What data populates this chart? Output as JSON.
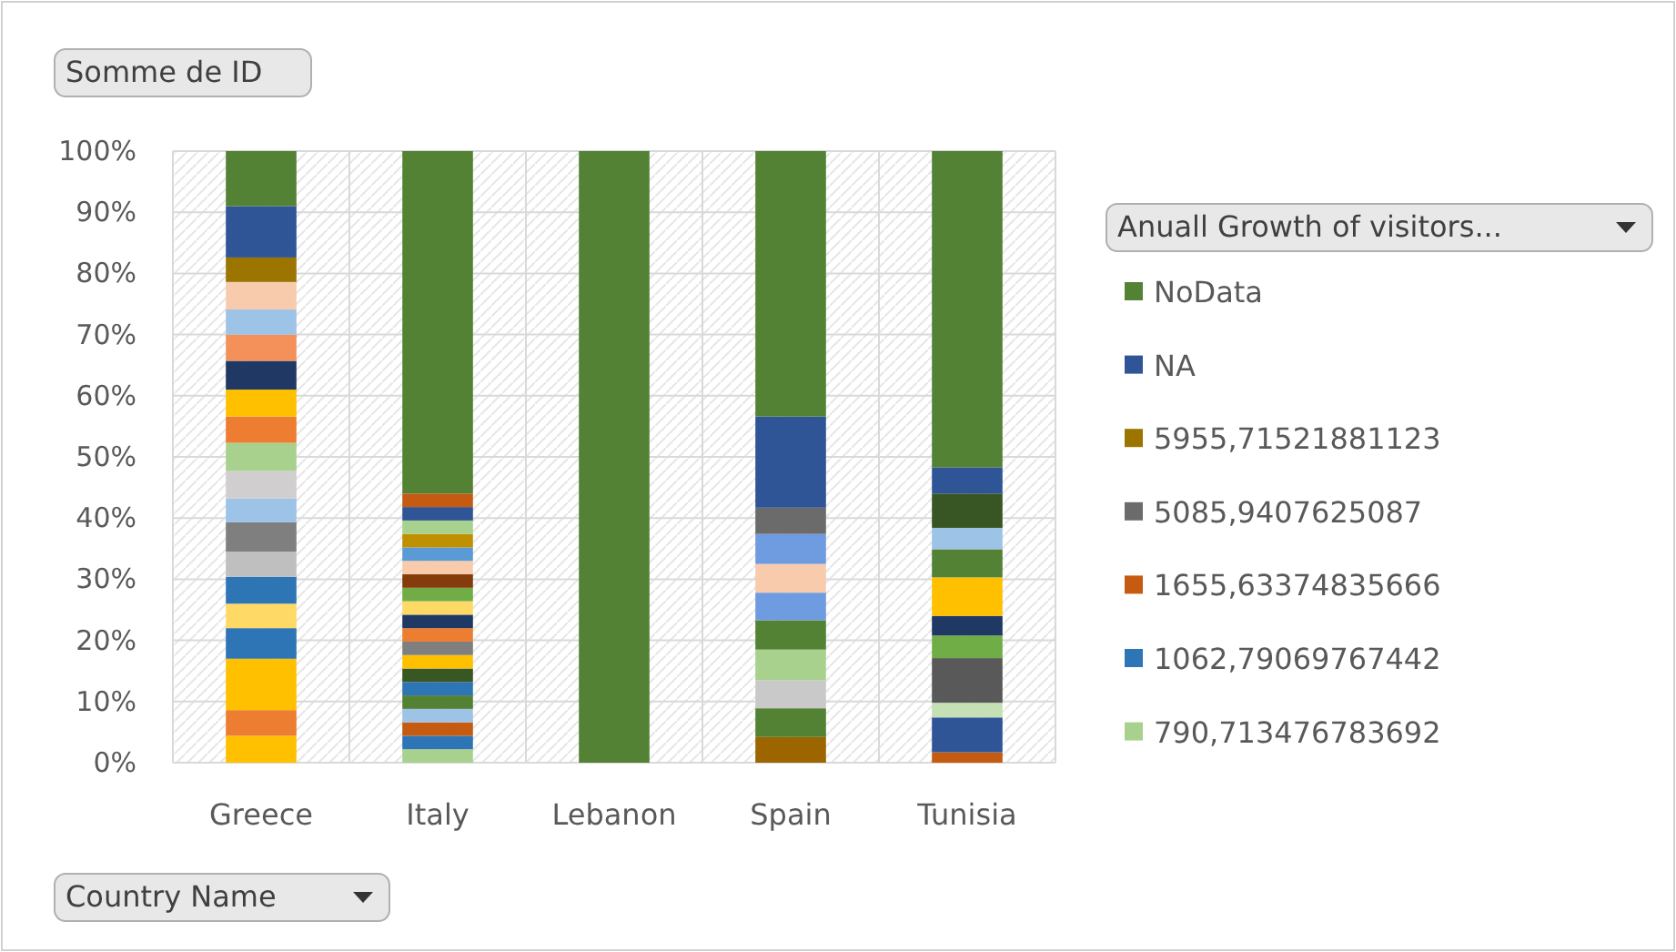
{
  "chart_data": {
    "type": "bar",
    "stacked": true,
    "title": "Somme de ID",
    "xlabel": "Country Name",
    "legend_title": "Anuall Growth of visitors...",
    "legend": "right",
    "grid": true,
    "categories": [
      "Greece",
      "Italy",
      "Lebanon",
      "Spain",
      "Tunisia"
    ],
    "ylim": [
      0,
      100
    ],
    "yticks": [
      {
        "value": 0,
        "label": "0%"
      },
      {
        "value": 10,
        "label": "10%"
      },
      {
        "value": 20,
        "label": "20%"
      },
      {
        "value": 30,
        "label": "30%"
      },
      {
        "value": 40,
        "label": "40%"
      },
      {
        "value": 50,
        "label": "50%"
      },
      {
        "value": 60,
        "label": "60%"
      },
      {
        "value": 70,
        "label": "70%"
      },
      {
        "value": 80,
        "label": "80%"
      },
      {
        "value": 90,
        "label": "90%"
      },
      {
        "value": 100,
        "label": "100%"
      }
    ],
    "series": [
      {
        "name": "790,713476783692",
        "color": "#a9d18e",
        "values": [
          null,
          2.2,
          null,
          null,
          null
        ]
      },
      {
        "name": "1062,79069767442",
        "color": "#2e75b6",
        "values": [
          null,
          2.2,
          null,
          null,
          null
        ]
      },
      {
        "name": "1655,63374835666",
        "color": "#c55a11",
        "values": [
          null,
          null,
          null,
          null,
          1.7
        ]
      },
      {
        "color": "#9c6500",
        "values": [
          null,
          null,
          null,
          4.2,
          null
        ]
      },
      {
        "color": "#548235",
        "values": [
          null,
          null,
          null,
          4.7,
          null
        ]
      },
      {
        "color": "#c9c9c9",
        "values": [
          null,
          null,
          null,
          4.6,
          null
        ]
      },
      {
        "color": "#a9d18e",
        "values": [
          null,
          null,
          null,
          5,
          null
        ]
      },
      {
        "color": "#548235",
        "values": [
          null,
          null,
          null,
          4.8,
          null
        ]
      },
      {
        "color": "#6f9be0",
        "values": [
          null,
          null,
          null,
          4.5,
          null
        ]
      },
      {
        "color": "#f8cbad",
        "values": [
          null,
          null,
          null,
          4.7,
          null
        ]
      },
      {
        "color": "#6f9be0",
        "values": [
          null,
          null,
          null,
          4.9,
          null
        ]
      },
      {
        "name": "5085,9407625087",
        "color": "#6b6b6b",
        "values": [
          null,
          null,
          null,
          4.3,
          null
        ]
      },
      {
        "color": "#ffc000",
        "values": [
          4.4,
          null,
          null,
          null,
          null
        ]
      },
      {
        "color": "#ed7d31",
        "values": [
          4.2,
          null,
          null,
          null,
          null
        ]
      },
      {
        "color": "#ffc000",
        "values": [
          8.4,
          null,
          null,
          null,
          null
        ]
      },
      {
        "color": "#2e75b6",
        "values": [
          5,
          null,
          null,
          null,
          null
        ]
      },
      {
        "color": "#ffd966",
        "values": [
          4,
          null,
          null,
          null,
          null
        ]
      },
      {
        "color": "#2e75b6",
        "values": [
          4.4,
          null,
          null,
          null,
          null
        ]
      },
      {
        "color": "#bfbfbf",
        "values": [
          4.1,
          null,
          null,
          null,
          null
        ]
      },
      {
        "color": "#7f7f7f",
        "values": [
          4.8,
          null,
          null,
          null,
          null
        ]
      },
      {
        "color": "#9dc3e6",
        "values": [
          3.9,
          null,
          null,
          null,
          null
        ]
      },
      {
        "color": "#d0cece",
        "values": [
          4.5,
          null,
          null,
          null,
          null
        ]
      },
      {
        "color": "#a9d18e",
        "values": [
          4.6,
          null,
          null,
          null,
          null
        ]
      },
      {
        "color": "#ed7d31",
        "values": [
          4.3,
          null,
          null,
          null,
          null
        ]
      },
      {
        "color": "#ffc000",
        "values": [
          4.4,
          null,
          null,
          null,
          null
        ]
      },
      {
        "color": "#203864",
        "values": [
          4.7,
          null,
          null,
          null,
          null
        ]
      },
      {
        "color": "#f4915a",
        "values": [
          4.3,
          null,
          null,
          null,
          null
        ]
      },
      {
        "color": "#9dc3e6",
        "values": [
          4.1,
          null,
          null,
          null,
          null
        ]
      },
      {
        "color": "#f8cbad",
        "values": [
          4.5,
          null,
          null,
          null,
          null
        ]
      },
      {
        "name": "5955,71521881123",
        "color": "#9c7400",
        "values": [
          4,
          null,
          null,
          null,
          null
        ]
      },
      {
        "color": "#c55a11",
        "values": [
          null,
          2.2,
          null,
          null,
          null
        ]
      },
      {
        "color": "#9dc3e6",
        "values": [
          null,
          2.2,
          null,
          null,
          null
        ]
      },
      {
        "color": "#548235",
        "values": [
          null,
          2.2,
          null,
          null,
          null
        ]
      },
      {
        "color": "#2e75b6",
        "values": [
          null,
          2.2,
          null,
          null,
          null
        ]
      },
      {
        "color": "#385723",
        "values": [
          null,
          2.2,
          null,
          null,
          null
        ]
      },
      {
        "color": "#ffc000",
        "values": [
          null,
          2.2,
          null,
          null,
          null
        ]
      },
      {
        "color": "#7f7f7f",
        "values": [
          null,
          2.2,
          null,
          null,
          null
        ]
      },
      {
        "color": "#ed7d31",
        "values": [
          null,
          2.2,
          null,
          null,
          null
        ]
      },
      {
        "color": "#203864",
        "values": [
          null,
          2.2,
          null,
          null,
          null
        ]
      },
      {
        "color": "#ffd966",
        "values": [
          null,
          2.2,
          null,
          null,
          null
        ]
      },
      {
        "color": "#70ad47",
        "values": [
          null,
          2.2,
          null,
          null,
          null
        ]
      },
      {
        "color": "#843c0c",
        "values": [
          null,
          2.2,
          null,
          null,
          null
        ]
      },
      {
        "color": "#f8cbad",
        "values": [
          null,
          2.2,
          null,
          null,
          null
        ]
      },
      {
        "color": "#5b9bd5",
        "values": [
          null,
          2.2,
          null,
          null,
          null
        ]
      },
      {
        "color": "#bf9000",
        "values": [
          null,
          2.2,
          null,
          null,
          null
        ]
      },
      {
        "color": "#a9d18e",
        "values": [
          null,
          2.2,
          null,
          null,
          null
        ]
      },
      {
        "color": "#2f5597",
        "values": [
          null,
          2.2,
          null,
          null,
          null
        ]
      },
      {
        "color": "#c55a11",
        "values": [
          null,
          2.2,
          null,
          null,
          null
        ]
      },
      {
        "color": "#2f5597",
        "values": [
          null,
          null,
          null,
          null,
          5.7
        ]
      },
      {
        "color": "#c5e0b4",
        "values": [
          null,
          null,
          null,
          null,
          2.4
        ]
      },
      {
        "color": "#595959",
        "values": [
          null,
          null,
          null,
          null,
          7.3
        ]
      },
      {
        "color": "#70ad47",
        "values": [
          null,
          null,
          null,
          null,
          3.7
        ]
      },
      {
        "color": "#1f3864",
        "values": [
          null,
          null,
          null,
          null,
          3.2
        ]
      },
      {
        "color": "#ffc000",
        "values": [
          null,
          null,
          null,
          null,
          6.3
        ]
      },
      {
        "color": "#548235",
        "values": [
          null,
          null,
          null,
          null,
          4.6
        ]
      },
      {
        "color": "#9dc3e6",
        "values": [
          null,
          null,
          null,
          null,
          3.5
        ]
      },
      {
        "color": "#375623",
        "values": [
          null,
          null,
          null,
          null,
          5.6
        ]
      },
      {
        "name": "NA",
        "color": "#2f5597",
        "values": [
          8.4,
          null,
          null,
          14.9,
          4.3
        ]
      },
      {
        "name": "NoData",
        "color": "#548235",
        "values": [
          9,
          56,
          100,
          43.4,
          51.7
        ]
      }
    ]
  }
}
